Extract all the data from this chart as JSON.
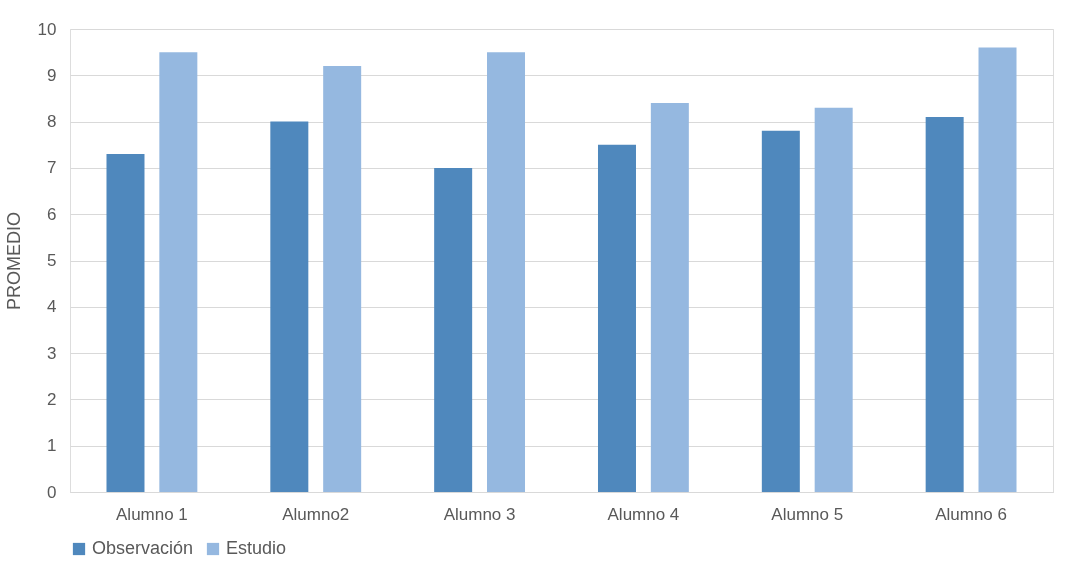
{
  "chart_data": {
    "type": "bar",
    "ylabel": "PROMEDIO",
    "categories": [
      "Alumno 1",
      "Alumno2",
      "Alumno 3",
      "Alumno 4",
      "Alumno 5",
      "Alumno 6"
    ],
    "series": [
      {
        "name": "Observación",
        "color": "#4f88bd",
        "values": [
          7.3,
          8.0,
          7.0,
          7.5,
          7.8,
          8.1
        ]
      },
      {
        "name": "Estudio",
        "color": "#95b8e0",
        "values": [
          9.5,
          9.2,
          9.5,
          8.4,
          8.3,
          9.6
        ]
      }
    ],
    "ylim": [
      0,
      10
    ],
    "yticks": [
      0,
      1,
      2,
      3,
      4,
      5,
      6,
      7,
      8,
      9,
      10
    ],
    "grid": "y",
    "legend": "bottom"
  }
}
